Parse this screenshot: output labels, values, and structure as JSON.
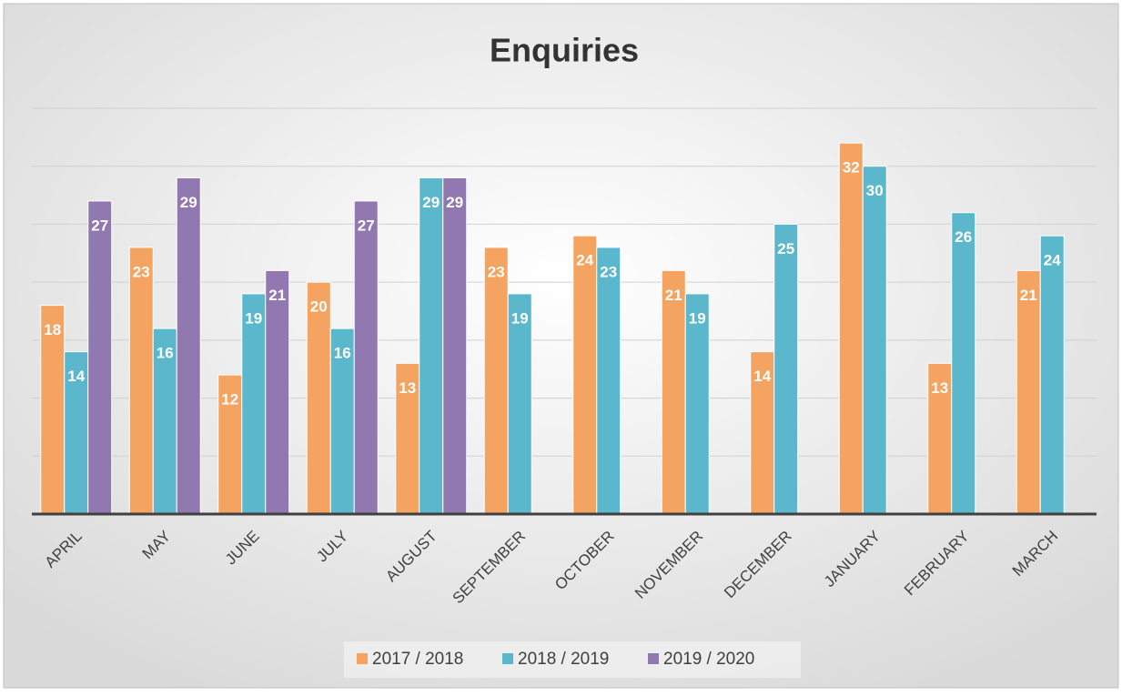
{
  "chart_data": {
    "type": "bar",
    "title": "Enquiries",
    "categories": [
      "APRIL",
      "MAY",
      "JUNE",
      "JULY",
      "AUGUST",
      "SEPTEMBER",
      "OCTOBER",
      "NOVEMBER",
      "DECEMBER",
      "JANUARY",
      "FEBRUARY",
      "MARCH"
    ],
    "series": [
      {
        "name": "2017 / 2018",
        "color": "#f4a460",
        "values": [
          18,
          23,
          12,
          20,
          13,
          23,
          24,
          21,
          14,
          32,
          13,
          21
        ]
      },
      {
        "name": "2018 / 2019",
        "color": "#5bb8cc",
        "values": [
          14,
          16,
          19,
          16,
          29,
          19,
          23,
          19,
          25,
          30,
          26,
          24
        ]
      },
      {
        "name": "2019 / 2020",
        "color": "#9178b0",
        "values": [
          27,
          29,
          21,
          27,
          29,
          null,
          null,
          null,
          null,
          null,
          null,
          null
        ]
      }
    ],
    "ylim": [
      0,
      35
    ],
    "yticks": [
      0,
      5,
      10,
      15,
      20,
      25,
      30,
      35
    ],
    "grid": true,
    "legend": "bottom"
  }
}
